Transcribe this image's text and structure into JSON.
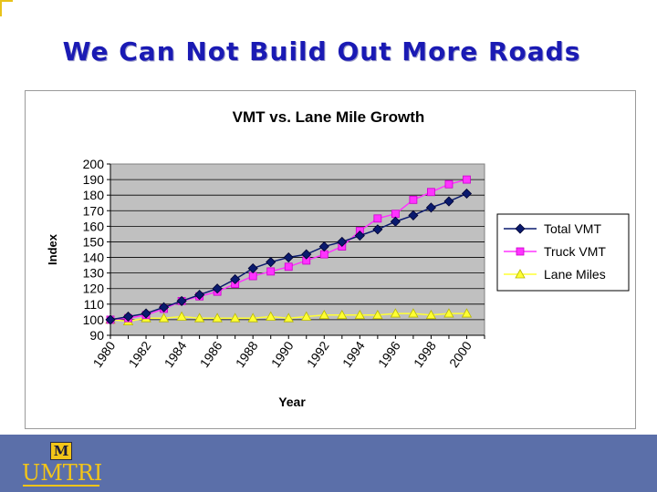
{
  "slide": {
    "title": "We Can Not Build Out More Roads",
    "logo_letter": "M",
    "logo_text": "UMTRI"
  },
  "colors": {
    "title": "#1a1ab4",
    "footer": "#5b6fa9",
    "logo": "#f3c518",
    "plot_bg": "#c0c0c0",
    "total_vmt": "#0a1a6e",
    "truck_vmt": "#ff33ff",
    "lane_miles": "#ffff33"
  },
  "chart_data": {
    "type": "line",
    "title": "VMT vs. Lane Mile Growth",
    "xlabel": "Year",
    "ylabel": "Index",
    "ylim": [
      90,
      200
    ],
    "yticks": [
      90,
      100,
      110,
      120,
      130,
      140,
      150,
      160,
      170,
      180,
      190,
      200
    ],
    "xlim": [
      1980,
      2001
    ],
    "xticks": [
      "1980",
      "1982",
      "1984",
      "1986",
      "1988",
      "1990",
      "1992",
      "1994",
      "1996",
      "1998",
      "2000"
    ],
    "grid": true,
    "legend": "right",
    "x": [
      1980,
      1981,
      1982,
      1983,
      1984,
      1985,
      1986,
      1987,
      1988,
      1989,
      1990,
      1991,
      1992,
      1993,
      1994,
      1995,
      1996,
      1997,
      1998,
      1999,
      2000
    ],
    "series": [
      {
        "name": "Total VMT",
        "marker": "diamond",
        "color": "#0a1a6e",
        "values": [
          100,
          102,
          104,
          108,
          112,
          116,
          120,
          126,
          133,
          137,
          140,
          142,
          147,
          150,
          154,
          158,
          163,
          167,
          172,
          176,
          181
        ]
      },
      {
        "name": "Truck VMT",
        "marker": "square",
        "color": "#ff33ff",
        "values": [
          100,
          101,
          103,
          107,
          112,
          115,
          118,
          123,
          128,
          131,
          134,
          138,
          142,
          147,
          157,
          165,
          168,
          177,
          182,
          187,
          190
        ]
      },
      {
        "name": "Lane Miles",
        "marker": "triangle",
        "color": "#ffff33",
        "values": [
          100,
          99,
          101,
          101,
          102,
          101,
          101,
          101,
          101,
          102,
          101,
          102,
          103,
          103,
          103,
          103,
          104,
          104,
          103,
          104,
          104
        ]
      }
    ]
  }
}
